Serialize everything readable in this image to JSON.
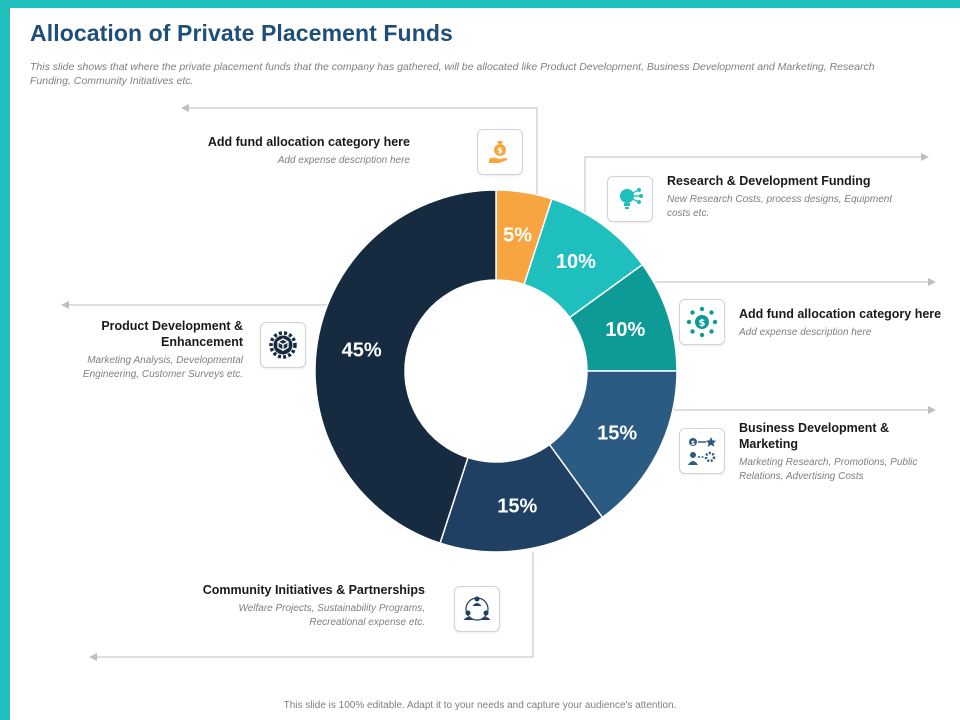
{
  "title": "Allocation of Private Placement Funds",
  "subtitle": "This slide shows that where the private placement funds that the company has gathered, will be allocated like Product Development, Business Development and Marketing, Research Funding, Community Initiatives etc.",
  "footer": "This slide is 100% editable. Adapt it to your needs and capture your audience's attention.",
  "colors": {
    "accent": "#1fbfbd",
    "title": "#1f4e79"
  },
  "labels": {
    "top_left": {
      "head": "Add fund allocation category here",
      "desc": "Add expense description here",
      "icon": "money-bag-hand-icon"
    },
    "research": {
      "head": "Research & Development Funding",
      "desc": "New Research Costs, process designs, Equipment costs etc.",
      "icon": "lightbulb-network-icon"
    },
    "right_mid": {
      "head": "Add fund allocation category here",
      "desc": "Add expense description here",
      "icon": "dollar-network-icon"
    },
    "business": {
      "head": "Business  Development & Marketing",
      "desc": "Marketing Research, Promotions, Public Relations, Advertising Costs",
      "icon": "strategy-board-icon"
    },
    "community": {
      "head": "Community Initiatives & Partnerships",
      "desc": "Welfare Projects, Sustainability Programs, Recreational expense etc.",
      "icon": "people-circle-icon"
    },
    "product": {
      "head": "Product Development & Enhancement",
      "desc": "Marketing Analysis, Developmental Engineering, Customer Surveys etc.",
      "icon": "gear-box-icon"
    }
  },
  "chart_data": {
    "type": "pie",
    "title": "",
    "categories": [
      "",
      "",
      "",
      "",
      "",
      ""
    ],
    "values": [
      5,
      10,
      10,
      15,
      15,
      45
    ],
    "value_labels": [
      "5%",
      "10%",
      "10%",
      "15%",
      "15%",
      "45%"
    ],
    "colors": [
      "#f7a541",
      "#1fbfbd",
      "#0e9a96",
      "#2b5a82",
      "#1f3f63",
      "#162a40"
    ],
    "donut": true,
    "legend": "none"
  }
}
